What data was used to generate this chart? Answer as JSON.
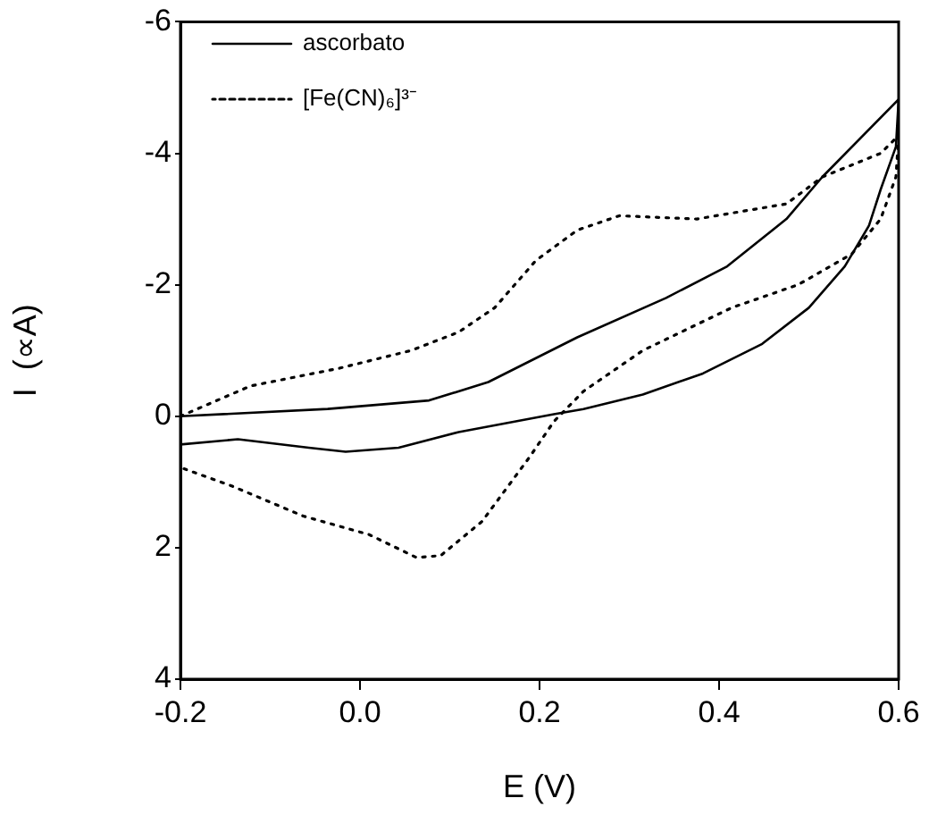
{
  "chart_data": {
    "type": "line",
    "xlabel": "E (V)",
    "ylabel": "I  (∝A)",
    "xlim": [
      -0.2,
      0.6
    ],
    "xticks": [
      -0.2,
      {
        "value": 0,
        "label": "0.0"
      },
      0.2,
      0.4,
      0.6
    ],
    "ylim": [
      4,
      -6
    ],
    "yticks": [
      -6,
      -4,
      -2,
      0,
      2,
      4
    ],
    "grid": false,
    "legend": "top left",
    "series": [
      {
        "name": "ascorbato",
        "color": "#000000",
        "line_style": "solid",
        "x": [
          -0.2,
          -0.036,
          0.077,
          0.143,
          0.242,
          0.341,
          0.409,
          0.475,
          0.515,
          0.6,
          0.597,
          0.58,
          0.567,
          0.54,
          0.5,
          0.448,
          0.382,
          0.315,
          0.249,
          0.216,
          0.11,
          0.043,
          -0.016,
          -0.057,
          -0.136,
          -0.2
        ],
        "values": [
          0,
          -0.11,
          -0.24,
          -0.52,
          -1.2,
          -1.8,
          -2.28,
          -3.0,
          -3.64,
          -4.82,
          -4.1,
          -3.45,
          -2.9,
          -2.28,
          -1.65,
          -1.1,
          -0.65,
          -0.33,
          -0.11,
          -0.03,
          0.24,
          0.48,
          0.54,
          0.48,
          0.35,
          0.43
        ]
      },
      {
        "name": "[Fe(CN)₆]³⁻",
        "color": "#000000",
        "line_style": "dotted",
        "x": [
          -0.2,
          -0.122,
          -0.023,
          0.057,
          0.11,
          0.15,
          0.196,
          0.242,
          0.289,
          0.375,
          0.475,
          0.515,
          0.58,
          0.6,
          0.597,
          0.58,
          0.548,
          0.488,
          0.414,
          0.315,
          0.249,
          0.216,
          0.189,
          0.136,
          0.09,
          0.063,
          0.01,
          -0.063,
          -0.143,
          -0.196
        ],
        "values": [
          0,
          -0.46,
          -0.73,
          -1.0,
          -1.28,
          -1.65,
          -2.37,
          -2.83,
          -3.05,
          -3.0,
          -3.23,
          -3.64,
          -4.0,
          -4.27,
          -3.64,
          -3.0,
          -2.47,
          -2.0,
          -1.65,
          -1.0,
          -0.38,
          0.08,
          0.62,
          1.6,
          2.12,
          2.15,
          1.8,
          1.52,
          1.06,
          0.8
        ]
      }
    ]
  }
}
